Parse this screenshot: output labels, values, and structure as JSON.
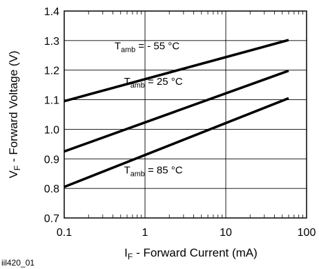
{
  "chart_data": {
    "type": "line",
    "xlabel": {
      "main": "I",
      "sub": "F",
      "rest": " - Forward Current (mA)"
    },
    "ylabel": {
      "main": "V",
      "sub": "F",
      "rest": " - Forward Voltage (V)"
    },
    "xscale": "log",
    "xlim": [
      0.1,
      100
    ],
    "ylim": [
      0.7,
      1.4
    ],
    "grid": true,
    "x_ticks": [
      {
        "value": 0.1,
        "label": "0.1"
      },
      {
        "value": 1,
        "label": "1"
      },
      {
        "value": 10,
        "label": "10"
      },
      {
        "value": 100,
        "label": "100"
      }
    ],
    "y_ticks": [
      {
        "value": 0.7,
        "label": "0.7"
      },
      {
        "value": 0.8,
        "label": "0.8"
      },
      {
        "value": 0.9,
        "label": "0.9"
      },
      {
        "value": 1.0,
        "label": "1.0"
      },
      {
        "value": 1.1,
        "label": "1.1"
      },
      {
        "value": 1.2,
        "label": "1.2"
      },
      {
        "value": 1.3,
        "label": "1.3"
      },
      {
        "value": 1.4,
        "label": "1.4"
      }
    ],
    "series": [
      {
        "x": [
          0.1,
          60
        ],
        "y": [
          1.095,
          1.302
        ],
        "label": {
          "main": "T",
          "sub": "amb",
          "rest": " = - 55 °C",
          "x": 0.42,
          "y": 1.27
        }
      },
      {
        "x": [
          0.1,
          60
        ],
        "y": [
          0.925,
          1.198
        ],
        "label": {
          "main": "T",
          "sub": "amb",
          "rest": " = 25 °C",
          "x": 0.55,
          "y": 1.15
        }
      },
      {
        "x": [
          0.1,
          60
        ],
        "y": [
          0.805,
          1.105
        ],
        "label": {
          "main": "T",
          "sub": "amb",
          "rest": " = 85 °C",
          "x": 0.55,
          "y": 0.85
        }
      }
    ]
  },
  "figure_code": "iil420_01"
}
